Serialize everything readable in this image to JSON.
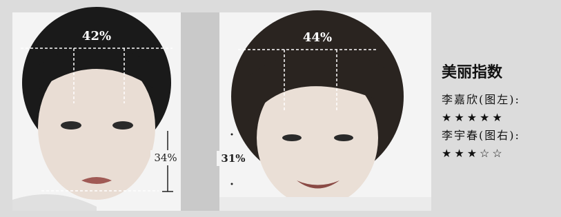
{
  "left_photo": {
    "top_label": "42%",
    "side_label": "34%"
  },
  "right_photo": {
    "top_label": "44%",
    "side_label": "31%"
  },
  "panel": {
    "title": "美丽指数",
    "entries": [
      {
        "name": "李嘉欣(图左):",
        "rating": "★★★★★"
      },
      {
        "name": "李宇春(图右):",
        "rating": "★★★☆☆"
      }
    ]
  }
}
